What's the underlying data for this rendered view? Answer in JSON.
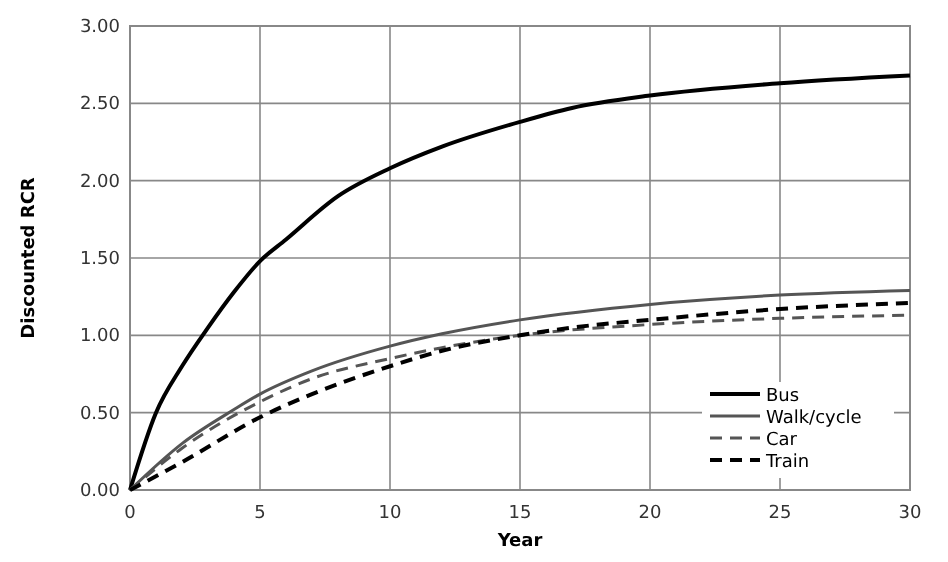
{
  "chart_data": {
    "type": "line",
    "xlabel": "Year",
    "ylabel": "Discounted RCR",
    "xlim": [
      0,
      30
    ],
    "ylim": [
      0,
      3
    ],
    "xticks": [
      0,
      5,
      10,
      15,
      20,
      25,
      30
    ],
    "yticks": [
      {
        "value": 0,
        "label": "0.00"
      },
      {
        "value": 0.5,
        "label": "0.50"
      },
      {
        "value": 1,
        "label": "1.00"
      },
      {
        "value": 1.5,
        "label": "1.50"
      },
      {
        "value": 2,
        "label": "2.00"
      },
      {
        "value": 2.5,
        "label": "2.50"
      },
      {
        "value": 3,
        "label": "3.00"
      }
    ],
    "grid": true,
    "legend": "bottom right",
    "marker": "none",
    "series": [
      {
        "name": "Bus",
        "color": "#000000",
        "line_style": "solid",
        "x": [
          0,
          1,
          2,
          3,
          4,
          5,
          6,
          8,
          10,
          12,
          15,
          17,
          20,
          25,
          30
        ],
        "values": [
          0,
          0.5,
          0.8,
          1.05,
          1.28,
          1.48,
          1.62,
          1.9,
          2.08,
          2.22,
          2.38,
          2.47,
          2.55,
          2.63,
          2.68
        ]
      },
      {
        "name": "Walk/cycle",
        "color": "#555555",
        "line_style": "solid",
        "x": [
          0,
          2,
          4,
          5,
          7,
          10,
          12,
          15,
          20,
          25,
          30
        ],
        "values": [
          0,
          0.3,
          0.52,
          0.62,
          0.77,
          0.93,
          1.01,
          1.1,
          1.2,
          1.26,
          1.29
        ]
      },
      {
        "name": "Car",
        "color": "#555555",
        "line_style": "dashed",
        "x": [
          0,
          2,
          5,
          7,
          10,
          12,
          15,
          20,
          25,
          30
        ],
        "values": [
          0,
          0.27,
          0.57,
          0.72,
          0.85,
          0.92,
          1.0,
          1.07,
          1.11,
          1.13
        ]
      },
      {
        "name": "Train",
        "color": "#000000",
        "line_style": "dashed",
        "x": [
          0,
          2,
          5,
          7,
          10,
          12,
          15,
          17,
          20,
          25,
          30
        ],
        "values": [
          0,
          0.18,
          0.47,
          0.62,
          0.8,
          0.9,
          1.0,
          1.05,
          1.1,
          1.17,
          1.21
        ]
      }
    ]
  }
}
